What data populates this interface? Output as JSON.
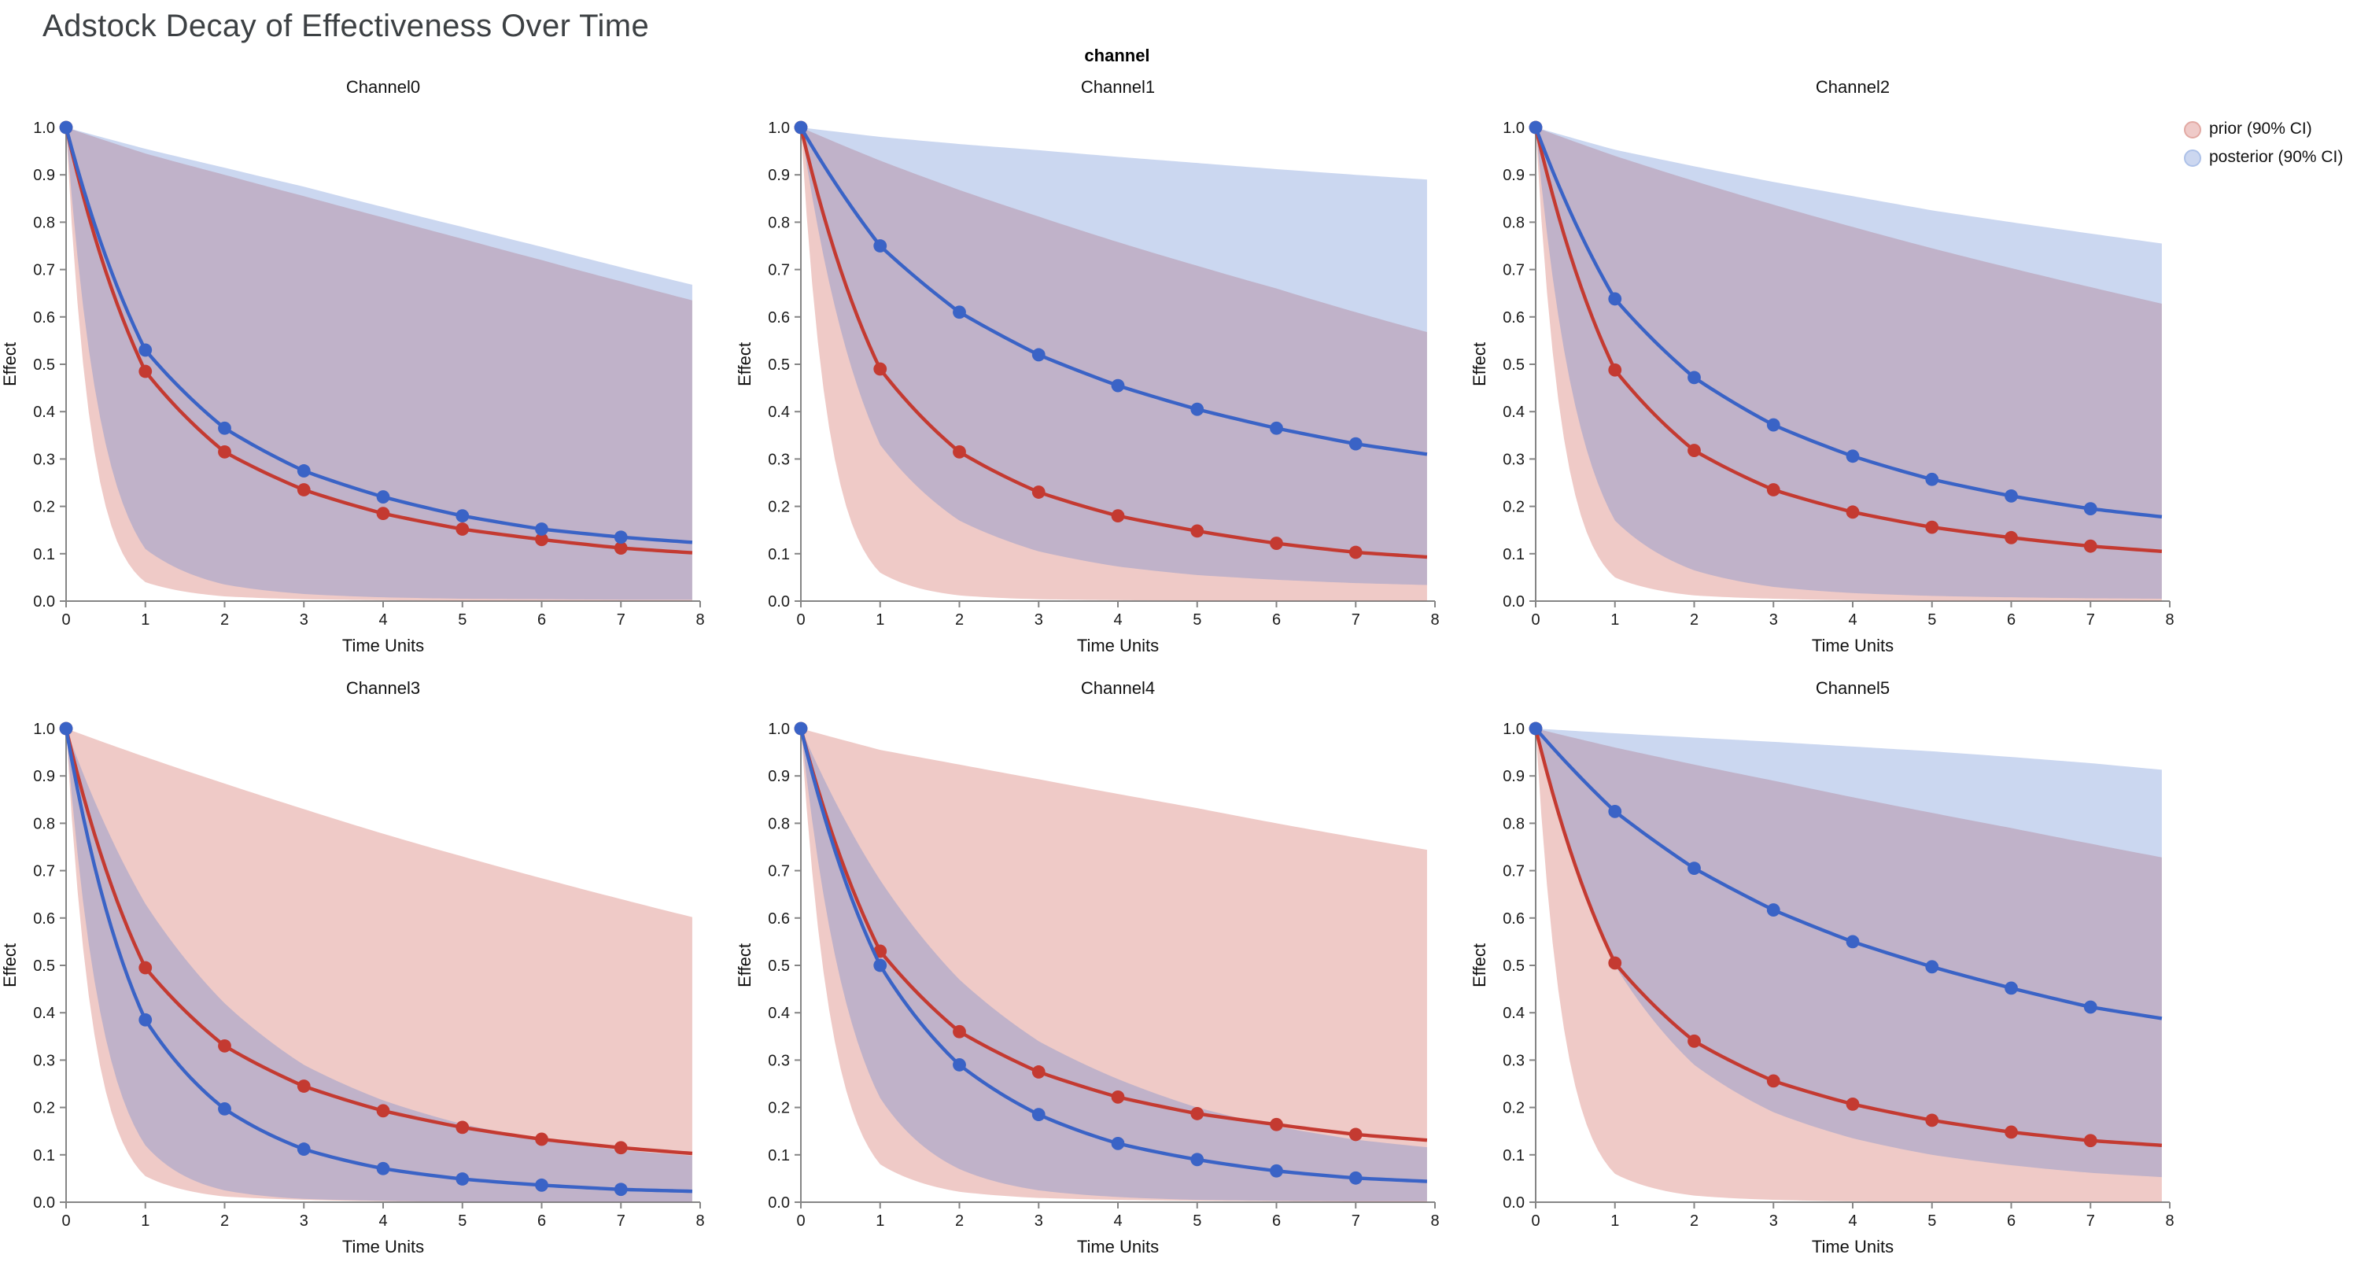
{
  "page": {
    "title": "Adstock Decay of Effectiveness Over Time",
    "facet_header": "channel"
  },
  "legend": {
    "position": "top-right",
    "entries": [
      {
        "label": "prior (90% CI)",
        "color": "#efcac8",
        "border": "#e2a9a3"
      },
      {
        "label": "posterior (90% CI)",
        "color": "#ccd7f0",
        "border": "#adc1e8"
      }
    ]
  },
  "style": {
    "prior_line": "#c43a31",
    "posterior_line": "#3a63c6",
    "prior_band": "rgba(201,78,70,0.3)",
    "posterior_band": "rgba(84,122,205,0.3)",
    "axis_color": "#858585",
    "tick_label_color": "#1a1a1a",
    "background": "#ffffff"
  },
  "axes": {
    "xlabel": "Time Units",
    "ylabel": "Effect",
    "xlim": [
      0,
      8
    ],
    "ylim": [
      0,
      1
    ],
    "xticks": [
      0,
      1,
      2,
      3,
      4,
      5,
      6,
      7,
      8
    ],
    "yticks": [
      "0.0",
      "0.1",
      "0.2",
      "0.3",
      "0.4",
      "0.5",
      "0.6",
      "0.7",
      "0.8",
      "0.9",
      "1.0"
    ],
    "grid": false
  },
  "chart_data": [
    {
      "type": "line",
      "title": "Channel0",
      "x": [
        0,
        1,
        2,
        3,
        4,
        5,
        6,
        7,
        7.9
      ],
      "marker_x_max": 7,
      "series": [
        {
          "role": "prior",
          "name": "prior mean",
          "values": [
            1.0,
            0.485,
            0.315,
            0.235,
            0.185,
            0.152,
            0.13,
            0.112,
            0.102
          ]
        },
        {
          "role": "posterior",
          "name": "posterior mean",
          "values": [
            1.0,
            0.53,
            0.365,
            0.275,
            0.22,
            0.18,
            0.152,
            0.135,
            0.124
          ]
        }
      ],
      "bands": [
        {
          "role": "prior",
          "name": "prior 90% CI",
          "upper": [
            1.0,
            0.945,
            0.9,
            0.855,
            0.81,
            0.765,
            0.72,
            0.675,
            0.635
          ],
          "lower": [
            1.0,
            0.04,
            0.01,
            0.004,
            0.002,
            0.001,
            0.001,
            0.001,
            0.001
          ]
        },
        {
          "role": "posterior",
          "name": "posterior 90% CI",
          "upper": [
            1.0,
            0.955,
            0.915,
            0.875,
            0.832,
            0.79,
            0.748,
            0.705,
            0.668
          ],
          "lower": [
            1.0,
            0.11,
            0.035,
            0.015,
            0.008,
            0.005,
            0.004,
            0.003,
            0.003
          ]
        }
      ]
    },
    {
      "type": "line",
      "title": "Channel1",
      "x": [
        0,
        1,
        2,
        3,
        4,
        5,
        6,
        7,
        7.9
      ],
      "marker_x_max": 7,
      "series": [
        {
          "role": "prior",
          "name": "prior mean",
          "values": [
            1.0,
            0.49,
            0.315,
            0.23,
            0.18,
            0.148,
            0.122,
            0.103,
            0.093
          ]
        },
        {
          "role": "posterior",
          "name": "posterior mean",
          "values": [
            1.0,
            0.75,
            0.61,
            0.52,
            0.455,
            0.405,
            0.365,
            0.332,
            0.31
          ]
        }
      ],
      "bands": [
        {
          "role": "prior",
          "name": "prior 90% CI",
          "upper": [
            1.0,
            0.93,
            0.868,
            0.812,
            0.758,
            0.708,
            0.66,
            0.61,
            0.568
          ],
          "lower": [
            1.0,
            0.06,
            0.012,
            0.004,
            0.002,
            0.001,
            0.001,
            0.001,
            0.001
          ]
        },
        {
          "role": "posterior",
          "name": "posterior 90% CI",
          "upper": [
            1.0,
            0.98,
            0.965,
            0.952,
            0.938,
            0.925,
            0.912,
            0.9,
            0.89
          ],
          "lower": [
            1.0,
            0.33,
            0.17,
            0.105,
            0.073,
            0.055,
            0.045,
            0.038,
            0.034
          ]
        }
      ]
    },
    {
      "type": "line",
      "title": "Channel2",
      "x": [
        0,
        1,
        2,
        3,
        4,
        5,
        6,
        7,
        7.9
      ],
      "marker_x_max": 7,
      "series": [
        {
          "role": "prior",
          "name": "prior mean",
          "values": [
            1.0,
            0.488,
            0.318,
            0.235,
            0.188,
            0.156,
            0.134,
            0.116,
            0.105
          ]
        },
        {
          "role": "posterior",
          "name": "posterior mean",
          "values": [
            1.0,
            0.638,
            0.472,
            0.372,
            0.306,
            0.257,
            0.222,
            0.195,
            0.178
          ]
        }
      ],
      "bands": [
        {
          "role": "prior",
          "name": "prior 90% CI",
          "upper": [
            1.0,
            0.94,
            0.887,
            0.837,
            0.79,
            0.745,
            0.703,
            0.663,
            0.628
          ],
          "lower": [
            1.0,
            0.05,
            0.012,
            0.005,
            0.002,
            0.001,
            0.001,
            0.001,
            0.001
          ]
        },
        {
          "role": "posterior",
          "name": "posterior 90% CI",
          "upper": [
            1.0,
            0.953,
            0.918,
            0.885,
            0.855,
            0.825,
            0.8,
            0.776,
            0.755
          ],
          "lower": [
            1.0,
            0.17,
            0.065,
            0.03,
            0.017,
            0.011,
            0.008,
            0.006,
            0.005
          ]
        }
      ]
    },
    {
      "type": "line",
      "title": "Channel3",
      "x": [
        0,
        1,
        2,
        3,
        4,
        5,
        6,
        7,
        7.9
      ],
      "marker_x_max": 7,
      "series": [
        {
          "role": "prior",
          "name": "prior mean",
          "values": [
            1.0,
            0.495,
            0.33,
            0.245,
            0.193,
            0.158,
            0.133,
            0.115,
            0.103
          ]
        },
        {
          "role": "posterior",
          "name": "posterior mean",
          "values": [
            1.0,
            0.385,
            0.197,
            0.112,
            0.071,
            0.049,
            0.036,
            0.027,
            0.023
          ]
        }
      ],
      "bands": [
        {
          "role": "prior",
          "name": "prior 90% CI",
          "upper": [
            1.0,
            0.94,
            0.884,
            0.83,
            0.778,
            0.73,
            0.684,
            0.64,
            0.602
          ],
          "lower": [
            1.0,
            0.055,
            0.012,
            0.005,
            0.002,
            0.001,
            0.001,
            0.001,
            0.001
          ]
        },
        {
          "role": "posterior",
          "name": "posterior 90% CI",
          "upper": [
            1.0,
            0.63,
            0.42,
            0.29,
            0.215,
            0.165,
            0.132,
            0.11,
            0.098
          ],
          "lower": [
            1.0,
            0.12,
            0.025,
            0.007,
            0.003,
            0.001,
            0.001,
            0.001,
            0.001
          ]
        }
      ]
    },
    {
      "type": "line",
      "title": "Channel4",
      "x": [
        0,
        1,
        2,
        3,
        4,
        5,
        6,
        7,
        7.9
      ],
      "marker_x_max": 7,
      "series": [
        {
          "role": "prior",
          "name": "prior mean",
          "values": [
            1.0,
            0.53,
            0.36,
            0.275,
            0.222,
            0.187,
            0.164,
            0.143,
            0.131
          ]
        },
        {
          "role": "posterior",
          "name": "posterior mean",
          "values": [
            1.0,
            0.5,
            0.29,
            0.185,
            0.124,
            0.09,
            0.066,
            0.051,
            0.044
          ]
        }
      ],
      "bands": [
        {
          "role": "prior",
          "name": "prior 90% CI",
          "upper": [
            1.0,
            0.955,
            0.924,
            0.893,
            0.862,
            0.832,
            0.8,
            0.77,
            0.744
          ],
          "lower": [
            1.0,
            0.08,
            0.022,
            0.009,
            0.005,
            0.003,
            0.002,
            0.001,
            0.001
          ]
        },
        {
          "role": "posterior",
          "name": "posterior 90% CI",
          "upper": [
            1.0,
            0.68,
            0.47,
            0.34,
            0.26,
            0.2,
            0.16,
            0.132,
            0.116
          ],
          "lower": [
            1.0,
            0.22,
            0.07,
            0.025,
            0.011,
            0.005,
            0.003,
            0.002,
            0.002
          ]
        }
      ]
    },
    {
      "type": "line",
      "title": "Channel5",
      "x": [
        0,
        1,
        2,
        3,
        4,
        5,
        6,
        7,
        7.9
      ],
      "marker_x_max": 7,
      "series": [
        {
          "role": "prior",
          "name": "prior mean",
          "values": [
            1.0,
            0.505,
            0.34,
            0.256,
            0.207,
            0.173,
            0.148,
            0.13,
            0.12
          ]
        },
        {
          "role": "posterior",
          "name": "posterior mean",
          "values": [
            1.0,
            0.825,
            0.705,
            0.617,
            0.55,
            0.497,
            0.452,
            0.412,
            0.388
          ]
        }
      ],
      "bands": [
        {
          "role": "prior",
          "name": "prior 90% CI",
          "upper": [
            1.0,
            0.96,
            0.924,
            0.89,
            0.855,
            0.822,
            0.79,
            0.757,
            0.728
          ],
          "lower": [
            1.0,
            0.06,
            0.014,
            0.005,
            0.002,
            0.001,
            0.001,
            0.001,
            0.001
          ]
        },
        {
          "role": "posterior",
          "name": "posterior 90% CI",
          "upper": [
            1.0,
            0.99,
            0.981,
            0.972,
            0.962,
            0.952,
            0.94,
            0.927,
            0.913
          ],
          "lower": [
            1.0,
            0.5,
            0.29,
            0.19,
            0.135,
            0.1,
            0.078,
            0.062,
            0.053
          ]
        }
      ]
    }
  ]
}
